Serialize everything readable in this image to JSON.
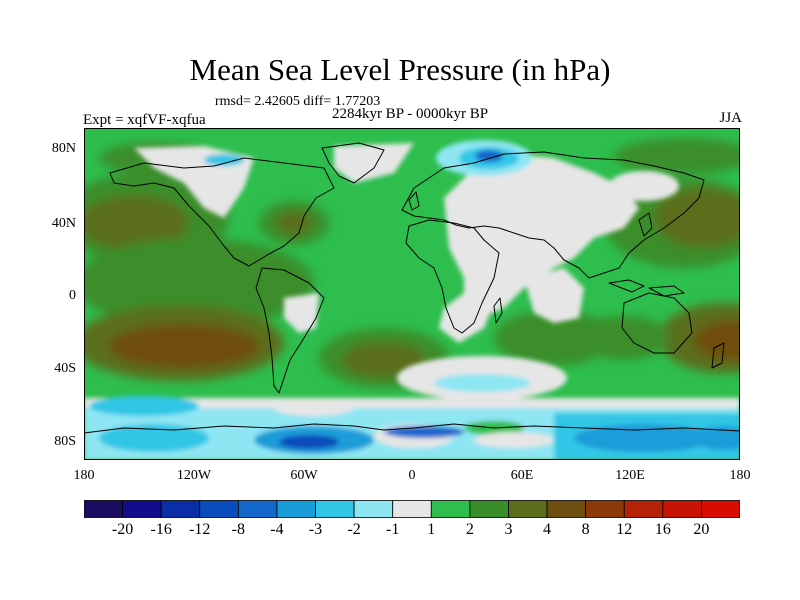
{
  "figure": {
    "title": "Mean Sea Level Pressure (in hPa)",
    "stats": "rmsd= 2.42605 diff= 1.77203",
    "experiment": "Expt = xqfVF-xqfua",
    "period": "2284kyr BP - 0000kyr BP",
    "season": "JJA"
  },
  "axes": {
    "y_labels": [
      "80N",
      "40N",
      "0",
      "40S",
      "80S"
    ],
    "x_labels": [
      "180",
      "120W",
      "60W",
      "0",
      "60E",
      "120E",
      "180"
    ]
  },
  "colorbar": {
    "labels": [
      "-20",
      "-16",
      "-12",
      "-8",
      "-4",
      "-3",
      "-2",
      "-1",
      "1",
      "2",
      "3",
      "4",
      "8",
      "12",
      "16",
      "20"
    ],
    "colors": [
      "#1a0c60",
      "#120c8c",
      "#0a2ea8",
      "#0a4cbc",
      "#1266cc",
      "#1a9cd8",
      "#32c6e6",
      "#8ee6f2",
      "#e6e6e6",
      "#2dbe4e",
      "#3a8e2a",
      "#5a6e1e",
      "#6e4e10",
      "#8c3a0a",
      "#b42208",
      "#c81404",
      "#d80c00"
    ]
  }
}
